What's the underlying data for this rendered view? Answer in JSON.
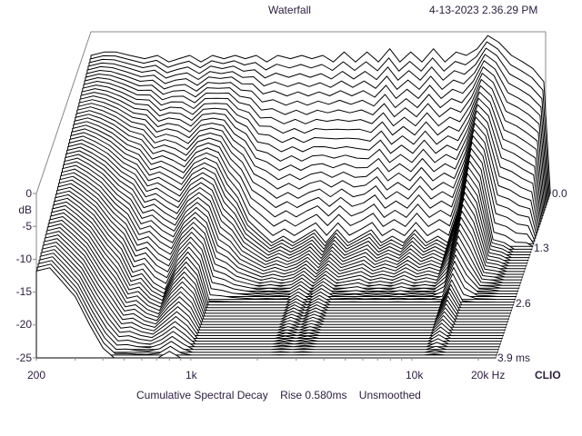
{
  "header": {
    "title": "Waterfall",
    "timestamp": "4-13-2023 2.36.29 PM"
  },
  "brand": "CLIO",
  "caption": {
    "analysis": "Cumulative Spectral Decay",
    "rise": "Rise 0.580ms",
    "smoothing": "Unsmoothed"
  },
  "colors": {
    "text": "#2e2040",
    "axis": "#888888",
    "trace": "#000000",
    "fill": "#ffffff"
  },
  "chart_data": {
    "type": "waterfall",
    "title": "Waterfall",
    "xlabel": "Hz",
    "ylabel": "dB",
    "zlabel": "ms",
    "x_scale": "log",
    "xlim": [
      200,
      24000
    ],
    "ylim": [
      -25,
      0
    ],
    "zlim": [
      0,
      3.9
    ],
    "x_ticks": [
      "200",
      "1k",
      "10k",
      "20k Hz"
    ],
    "y_ticks": [
      "0",
      "-5",
      "-10",
      "-15",
      "-20",
      "-25"
    ],
    "z_ticks": [
      "0.0",
      "1.3",
      "2.6",
      "3.9 ms"
    ],
    "frequencies_hz": [
      200,
      230,
      260,
      300,
      350,
      400,
      450,
      500,
      560,
      630,
      710,
      800,
      900,
      1000,
      1120,
      1250,
      1400,
      1600,
      1800,
      2000,
      2240,
      2500,
      2800,
      3150,
      3550,
      4000,
      4500,
      5000,
      5600,
      6300,
      7100,
      8000,
      9000,
      10000,
      11200,
      12500,
      14000,
      16000,
      18000,
      20000,
      22400
    ],
    "slices": [
      {
        "time_ms": 0.0,
        "levels_db": [
          -4,
          -3.5,
          -3.5,
          -4,
          -4.5,
          -4,
          -5,
          -4.5,
          -4,
          -5,
          -4,
          -4.5,
          -4,
          -4.5,
          -4,
          -5,
          -4,
          -4.5,
          -4,
          -4.5,
          -4,
          -5,
          -3.5,
          -5,
          -3.5,
          -5,
          -3,
          -5,
          -3.5,
          -5,
          -3,
          -5,
          -3.5,
          -4,
          -3,
          -1,
          -2,
          -4,
          -5,
          -6,
          -8
        ]
      },
      {
        "time_ms": 1.3,
        "levels_db": [
          -6.6,
          -6.1,
          -6.8,
          -7.9,
          -9.7,
          -10.5,
          -12.8,
          -12.3,
          -13.1,
          -14.1,
          -11.8,
          -11,
          -11.8,
          -14.9,
          -17,
          -20.6,
          -22.2,
          -24,
          -23,
          -24,
          -23,
          -22,
          -24,
          -22,
          -24,
          -23,
          -22,
          -24,
          -23,
          -24,
          -22,
          -24,
          -23,
          -24,
          -18.6,
          -11.4,
          -13.7,
          -23.5,
          -24,
          -25,
          -25
        ]
      },
      {
        "time_ms": 2.6,
        "levels_db": [
          -9.2,
          -8.7,
          -10,
          -11.8,
          -14.9,
          -17,
          -20.6,
          -20.1,
          -22.2,
          -23.2,
          -19.6,
          -17.5,
          -19.6,
          -25,
          -25,
          -25,
          -25,
          -25,
          -25,
          -25,
          -25,
          -24,
          -25,
          -24,
          -25,
          -25,
          -25,
          -25,
          -25,
          -25,
          -25,
          -25,
          -25,
          -25,
          -25,
          -21.8,
          -25,
          -25,
          -25,
          -25,
          -25
        ]
      },
      {
        "time_ms": 3.9,
        "levels_db": [
          -11.8,
          -11.3,
          -13.3,
          -15.7,
          -20.1,
          -23.5,
          -25,
          -25,
          -25,
          -25,
          -25,
          -24,
          -25,
          -25,
          -25,
          -25,
          -25,
          -25,
          -25,
          -25,
          -25,
          -25,
          -25,
          -25,
          -25,
          -25,
          -25,
          -25,
          -25,
          -25,
          -25,
          -25,
          -25,
          -25,
          -25,
          -25,
          -25,
          -25,
          -25,
          -25,
          -25
        ]
      }
    ]
  }
}
